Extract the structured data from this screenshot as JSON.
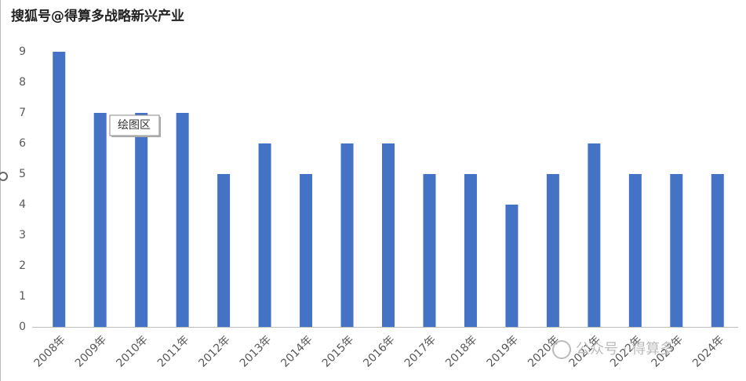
{
  "chart_data": {
    "type": "bar",
    "title": "搜狐号@得算多战略新兴产业",
    "categories": [
      "2008年",
      "2009年",
      "2010年",
      "2011年",
      "2012年",
      "2013年",
      "2014年",
      "2015年",
      "2016年",
      "2017年",
      "2018年",
      "2019年",
      "2020年",
      "2021年",
      "2022年",
      "2023年",
      "2024年"
    ],
    "values": [
      9,
      7,
      7,
      7,
      5,
      6,
      5,
      6,
      6,
      5,
      5,
      4,
      5,
      6,
      5,
      5,
      5
    ],
    "color": "#4472c4",
    "ylim": [
      0,
      9
    ],
    "yticks": [
      0,
      1,
      2,
      3,
      4,
      5,
      6,
      7,
      8,
      9
    ],
    "grid": false,
    "annotations": [
      "绘图区",
      "公众号 · 得算多"
    ]
  }
}
